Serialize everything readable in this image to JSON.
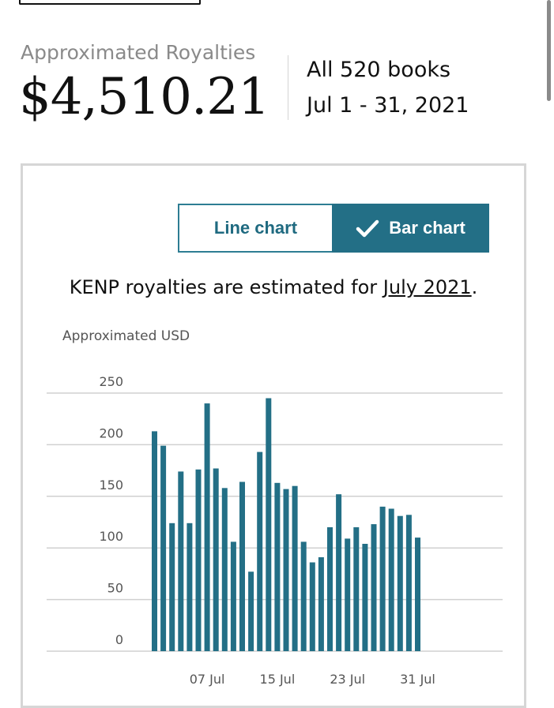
{
  "summary": {
    "label": "Approximated Royalties",
    "amount": "$4,510.21",
    "scope": "All 520 books",
    "date_range": "Jul 1 - 31, 2021"
  },
  "toggle": {
    "line_label": "Line chart",
    "bar_label": "Bar chart",
    "selected": "Bar chart"
  },
  "note": {
    "prefix": "KENP royalties are estimated for ",
    "link": "July 2021",
    "suffix": "."
  },
  "colors": {
    "bar": "#236f86",
    "accent": "#2e7d93"
  },
  "icons": {
    "checkmark": "check-icon"
  },
  "chart_data": {
    "type": "bar",
    "ylabel": "Approximated USD",
    "ylim": [
      0,
      250
    ],
    "yticks": [
      0,
      50,
      100,
      150,
      200,
      250
    ],
    "grid": true,
    "x_tick_labels": [
      "07 Jul",
      "15 Jul",
      "23 Jul",
      "31 Jul"
    ],
    "categories": [
      "01 Jul",
      "02 Jul",
      "03 Jul",
      "04 Jul",
      "05 Jul",
      "06 Jul",
      "07 Jul",
      "08 Jul",
      "09 Jul",
      "10 Jul",
      "11 Jul",
      "12 Jul",
      "13 Jul",
      "14 Jul",
      "15 Jul",
      "16 Jul",
      "17 Jul",
      "18 Jul",
      "19 Jul",
      "20 Jul",
      "21 Jul",
      "22 Jul",
      "23 Jul",
      "24 Jul",
      "25 Jul",
      "26 Jul",
      "27 Jul",
      "28 Jul",
      "29 Jul",
      "30 Jul",
      "31 Jul"
    ],
    "values": [
      213,
      199,
      124,
      174,
      124,
      176,
      240,
      177,
      158,
      106,
      164,
      77,
      193,
      245,
      163,
      157,
      160,
      106,
      86,
      91,
      120,
      152,
      109,
      120,
      104,
      123,
      140,
      138,
      131,
      132,
      110
    ]
  }
}
